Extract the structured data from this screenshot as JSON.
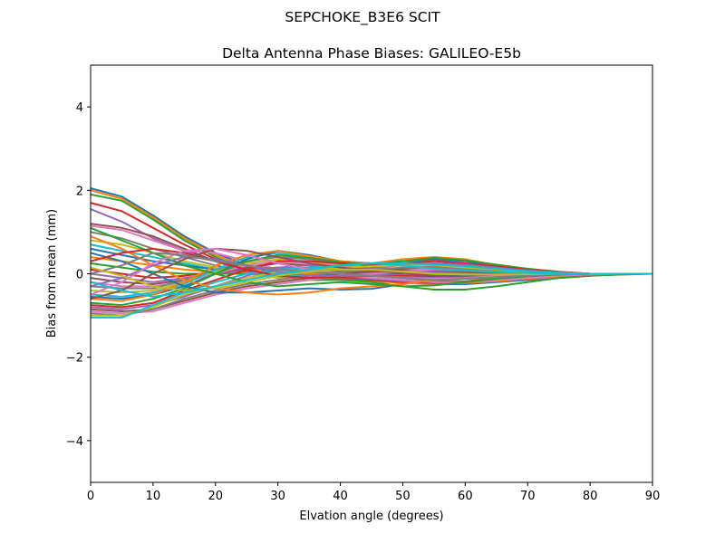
{
  "suptitle": "SEPCHOKE_B3E6   SCIT",
  "chart_data": {
    "type": "line",
    "title": "Delta Antenna Phase Biases: GALILEO-E5b",
    "xlabel": "Elvation angle (degrees)",
    "ylabel": "Bias from mean (mm)",
    "xlim": [
      0,
      90
    ],
    "ylim": [
      -5,
      5
    ],
    "xticks": [
      0,
      10,
      20,
      30,
      40,
      50,
      60,
      70,
      80,
      90
    ],
    "xtick_labels": [
      "0",
      "10",
      "20",
      "30",
      "40",
      "50",
      "60",
      "70",
      "80",
      "90"
    ],
    "yticks": [
      -4,
      -2,
      0,
      2,
      4
    ],
    "ytick_labels": [
      "−4",
      "−2",
      "0",
      "2",
      "4"
    ],
    "grid": false,
    "legend": "none",
    "palette": [
      "#1f77b4",
      "#ff7f0e",
      "#2ca02c",
      "#d62728",
      "#9467bd",
      "#8c564b",
      "#e377c2",
      "#7f7f7f",
      "#bcbd22",
      "#17becf"
    ],
    "x": [
      0,
      5,
      10,
      15,
      20,
      25,
      30,
      35,
      40,
      45,
      50,
      55,
      60,
      65,
      70,
      75,
      80,
      85,
      90
    ],
    "series": [
      {
        "values": [
          2.05,
          1.85,
          1.4,
          0.9,
          0.5,
          0.2,
          0.0,
          -0.1,
          -0.1,
          -0.15,
          -0.2,
          -0.25,
          -0.25,
          -0.2,
          -0.15,
          -0.1,
          -0.05,
          0.0,
          0.0
        ]
      },
      {
        "values": [
          2.0,
          1.8,
          1.35,
          0.85,
          0.45,
          0.15,
          -0.05,
          -0.1,
          -0.12,
          -0.18,
          -0.22,
          -0.25,
          -0.22,
          -0.18,
          -0.12,
          -0.08,
          -0.04,
          -0.02,
          0.0
        ]
      },
      {
        "values": [
          1.9,
          1.75,
          1.3,
          0.8,
          0.4,
          0.1,
          -0.05,
          -0.15,
          -0.15,
          -0.2,
          -0.3,
          -0.38,
          -0.38,
          -0.3,
          -0.2,
          -0.1,
          -0.05,
          -0.02,
          0.0
        ]
      },
      {
        "values": [
          1.7,
          1.5,
          1.1,
          0.7,
          0.35,
          0.1,
          -0.05,
          -0.1,
          -0.1,
          -0.15,
          -0.2,
          -0.22,
          -0.2,
          -0.15,
          -0.1,
          -0.05,
          -0.02,
          0.0,
          0.0
        ]
      },
      {
        "values": [
          1.55,
          1.25,
          0.85,
          0.55,
          0.3,
          0.05,
          -0.1,
          -0.12,
          -0.1,
          -0.12,
          -0.18,
          -0.2,
          -0.2,
          -0.15,
          -0.1,
          -0.05,
          -0.02,
          0.0,
          0.0
        ]
      },
      {
        "values": [
          1.2,
          1.1,
          0.9,
          0.6,
          0.3,
          0.1,
          -0.05,
          -0.1,
          -0.1,
          -0.1,
          -0.15,
          -0.18,
          -0.18,
          -0.12,
          -0.08,
          -0.04,
          -0.02,
          0.0,
          0.0
        ]
      },
      {
        "values": [
          1.15,
          1.05,
          0.8,
          0.55,
          0.5,
          0.3,
          0.1,
          0.0,
          -0.05,
          -0.1,
          -0.15,
          -0.2,
          -0.2,
          -0.15,
          -0.1,
          -0.05,
          -0.02,
          0.0,
          0.0
        ]
      },
      {
        "values": [
          1.0,
          0.85,
          0.6,
          0.4,
          0.2,
          0.05,
          -0.1,
          -0.1,
          -0.05,
          -0.05,
          -0.1,
          -0.12,
          -0.12,
          -0.1,
          -0.05,
          -0.02,
          0.0,
          0.0,
          0.0
        ]
      },
      {
        "values": [
          0.8,
          0.7,
          0.5,
          0.3,
          0.15,
          0.0,
          -0.1,
          -0.12,
          -0.08,
          -0.05,
          -0.08,
          -0.1,
          -0.1,
          -0.08,
          -0.05,
          -0.02,
          0.0,
          0.0,
          0.0
        ]
      },
      {
        "values": [
          0.7,
          0.55,
          0.4,
          0.25,
          0.1,
          0.0,
          -0.05,
          -0.05,
          0.0,
          0.0,
          -0.05,
          -0.08,
          -0.08,
          -0.05,
          -0.03,
          -0.01,
          0.0,
          0.0,
          0.0
        ]
      },
      {
        "values": [
          0.6,
          0.45,
          0.3,
          0.2,
          0.1,
          0.05,
          0.0,
          -0.02,
          0.0,
          0.02,
          0.0,
          -0.05,
          -0.05,
          -0.03,
          -0.02,
          0.0,
          0.0,
          0.0,
          0.0
        ]
      },
      {
        "values": [
          0.4,
          0.3,
          0.2,
          0.1,
          0.05,
          0.02,
          0.0,
          0.0,
          0.02,
          0.05,
          0.05,
          0.02,
          0.0,
          0.0,
          0.0,
          0.0,
          0.0,
          0.0,
          0.0
        ]
      },
      {
        "values": [
          0.25,
          0.15,
          0.05,
          0.0,
          0.0,
          0.0,
          0.02,
          0.05,
          0.05,
          0.08,
          0.1,
          0.08,
          0.05,
          0.02,
          0.0,
          0.0,
          0.0,
          0.0,
          0.0
        ]
      },
      {
        "values": [
          0.1,
          0.0,
          -0.1,
          -0.05,
          0.05,
          0.1,
          0.15,
          0.1,
          0.08,
          0.05,
          0.02,
          0.0,
          -0.02,
          -0.02,
          -0.01,
          0.0,
          0.0,
          0.0,
          0.0
        ]
      },
      {
        "values": [
          0.0,
          -0.1,
          -0.2,
          -0.1,
          0.0,
          0.1,
          0.15,
          0.12,
          0.1,
          0.1,
          0.08,
          0.05,
          0.02,
          0.0,
          0.0,
          0.0,
          0.0,
          0.0,
          0.0
        ]
      },
      {
        "values": [
          -0.1,
          -0.2,
          -0.25,
          -0.15,
          0.0,
          0.15,
          0.25,
          0.2,
          0.15,
          0.12,
          0.1,
          0.08,
          0.05,
          0.02,
          0.0,
          0.0,
          0.0,
          0.0,
          0.0
        ]
      },
      {
        "values": [
          -0.2,
          -0.3,
          -0.3,
          -0.2,
          0.0,
          0.2,
          0.3,
          0.25,
          0.2,
          0.15,
          0.12,
          0.1,
          0.08,
          0.05,
          0.02,
          0.0,
          0.0,
          0.0,
          0.0
        ]
      },
      {
        "values": [
          -0.3,
          -0.35,
          -0.35,
          -0.15,
          0.1,
          0.3,
          0.4,
          0.35,
          0.25,
          0.2,
          0.2,
          0.2,
          0.15,
          0.1,
          0.05,
          0.02,
          0.0,
          0.0,
          0.0
        ]
      },
      {
        "values": [
          -0.4,
          -0.45,
          -0.4,
          -0.2,
          0.05,
          0.25,
          0.35,
          0.3,
          0.22,
          0.2,
          0.25,
          0.25,
          0.2,
          0.12,
          0.06,
          0.02,
          0.0,
          0.0,
          0.0
        ]
      },
      {
        "values": [
          -0.5,
          -0.55,
          -0.45,
          -0.25,
          0.1,
          0.4,
          0.5,
          0.4,
          0.28,
          0.25,
          0.3,
          0.32,
          0.25,
          0.15,
          0.08,
          0.03,
          0.0,
          0.0,
          0.0
        ]
      },
      {
        "values": [
          -0.55,
          -0.6,
          -0.5,
          -0.3,
          0.0,
          0.35,
          0.55,
          0.45,
          0.3,
          0.25,
          0.3,
          0.35,
          0.3,
          0.18,
          0.1,
          0.04,
          0.0,
          0.0,
          0.0
        ]
      },
      {
        "values": [
          -0.6,
          -0.65,
          -0.5,
          -0.2,
          0.2,
          0.45,
          0.55,
          0.42,
          0.3,
          0.25,
          0.35,
          0.4,
          0.35,
          0.2,
          0.12,
          0.05,
          0.0,
          0.0,
          0.0
        ]
      },
      {
        "values": [
          -0.7,
          -0.75,
          -0.6,
          -0.35,
          0.0,
          0.3,
          0.45,
          0.38,
          0.28,
          0.22,
          0.3,
          0.38,
          0.32,
          0.22,
          0.12,
          0.05,
          0.0,
          0.0,
          0.0
        ]
      },
      {
        "values": [
          -0.75,
          -0.8,
          -0.7,
          -0.4,
          -0.15,
          0.1,
          0.3,
          0.3,
          0.25,
          0.2,
          0.25,
          0.3,
          0.25,
          0.18,
          0.1,
          0.04,
          0.0,
          0.0,
          0.0
        ]
      },
      {
        "values": [
          -0.8,
          -0.85,
          -0.75,
          -0.55,
          -0.3,
          -0.05,
          0.15,
          0.2,
          0.18,
          0.15,
          0.2,
          0.25,
          0.22,
          0.15,
          0.08,
          0.03,
          0.0,
          0.0,
          0.0
        ]
      },
      {
        "values": [
          -0.85,
          -0.9,
          -0.85,
          -0.65,
          -0.45,
          -0.3,
          -0.2,
          -0.1,
          0.0,
          0.05,
          0.12,
          0.18,
          0.15,
          0.1,
          0.05,
          0.02,
          0.0,
          0.0,
          0.0
        ]
      },
      {
        "values": [
          -0.9,
          -0.95,
          -0.9,
          -0.7,
          -0.5,
          -0.35,
          -0.25,
          -0.15,
          -0.05,
          0.0,
          0.05,
          0.1,
          0.1,
          0.06,
          0.03,
          0.01,
          0.0,
          0.0,
          0.0
        ]
      },
      {
        "values": [
          -0.95,
          -1.0,
          -0.85,
          -0.6,
          -0.4,
          -0.25,
          -0.15,
          -0.05,
          0.05,
          0.1,
          0.15,
          0.15,
          0.12,
          0.08,
          0.04,
          0.01,
          0.0,
          0.0,
          0.0
        ]
      },
      {
        "values": [
          -1.0,
          -1.0,
          -0.8,
          -0.5,
          -0.3,
          -0.1,
          0.05,
          0.1,
          0.15,
          0.18,
          0.2,
          0.2,
          0.15,
          0.1,
          0.05,
          0.02,
          0.0,
          0.0,
          0.0
        ]
      },
      {
        "values": [
          -1.05,
          -1.05,
          -0.75,
          -0.45,
          -0.2,
          0.0,
          0.1,
          0.15,
          0.2,
          0.25,
          0.25,
          0.22,
          0.18,
          0.12,
          0.06,
          0.02,
          0.0,
          0.0,
          0.0
        ]
      },
      {
        "values": [
          0.5,
          0.3,
          0.0,
          -0.3,
          -0.45,
          -0.45,
          -0.4,
          -0.35,
          -0.38,
          -0.36,
          -0.25,
          -0.15,
          -0.08,
          -0.04,
          -0.02,
          0.0,
          0.0,
          0.0,
          0.0
        ]
      },
      {
        "values": [
          0.9,
          0.6,
          0.2,
          -0.15,
          -0.35,
          -0.45,
          -0.5,
          -0.45,
          -0.35,
          -0.3,
          -0.25,
          -0.15,
          -0.1,
          -0.05,
          -0.02,
          0.0,
          0.0,
          0.0,
          0.0
        ]
      },
      {
        "values": [
          1.1,
          0.8,
          0.5,
          0.2,
          0.0,
          -0.2,
          -0.3,
          -0.25,
          -0.2,
          -0.25,
          -0.3,
          -0.28,
          -0.2,
          -0.12,
          -0.06,
          -0.02,
          0.0,
          0.0,
          0.0
        ]
      },
      {
        "values": [
          0.3,
          0.5,
          0.6,
          0.5,
          0.3,
          0.1,
          -0.05,
          -0.1,
          -0.08,
          -0.05,
          -0.05,
          -0.08,
          -0.08,
          -0.05,
          -0.03,
          -0.01,
          0.0,
          0.0,
          0.0
        ]
      },
      {
        "values": [
          -0.3,
          -0.1,
          0.2,
          0.4,
          0.35,
          0.2,
          0.05,
          -0.05,
          -0.05,
          -0.05,
          -0.08,
          -0.1,
          -0.08,
          -0.05,
          -0.02,
          0.0,
          0.0,
          0.0,
          0.0
        ]
      },
      {
        "values": [
          -0.6,
          -0.4,
          0.0,
          0.35,
          0.6,
          0.55,
          0.4,
          0.25,
          0.15,
          0.08,
          0.02,
          -0.05,
          -0.08,
          -0.06,
          -0.03,
          -0.01,
          0.0,
          0.0,
          0.0
        ]
      },
      {
        "values": [
          -0.5,
          -0.2,
          0.25,
          0.55,
          0.6,
          0.45,
          0.25,
          0.1,
          0.0,
          -0.05,
          -0.1,
          -0.12,
          -0.1,
          -0.06,
          -0.03,
          -0.01,
          0.0,
          0.0,
          0.0
        ]
      },
      {
        "values": [
          0.0,
          0.2,
          0.5,
          0.45,
          0.3,
          0.2,
          0.1,
          0.05,
          0.0,
          -0.05,
          -0.1,
          -0.15,
          -0.12,
          -0.08,
          -0.04,
          -0.01,
          0.0,
          0.0,
          0.0
        ]
      },
      {
        "values": [
          0.15,
          -0.05,
          -0.3,
          -0.4,
          -0.35,
          -0.2,
          -0.05,
          0.05,
          0.1,
          0.1,
          0.05,
          0.0,
          -0.02,
          -0.02,
          -0.01,
          0.0,
          0.0,
          0.0,
          0.0
        ]
      },
      {
        "values": [
          -0.2,
          -0.4,
          -0.55,
          -0.45,
          -0.3,
          -0.15,
          0.0,
          0.1,
          0.2,
          0.25,
          0.2,
          0.12,
          0.08,
          0.04,
          0.02,
          0.0,
          0.0,
          0.0,
          0.0
        ]
      }
    ]
  }
}
